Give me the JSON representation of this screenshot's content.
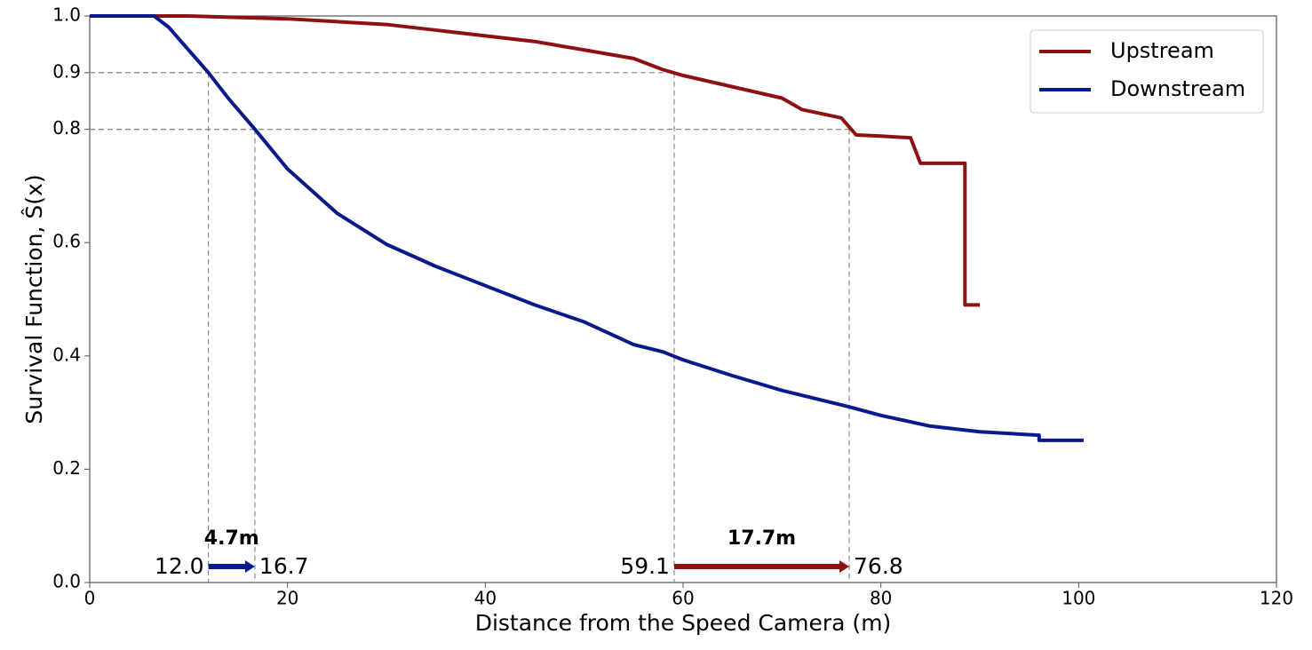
{
  "chart_data": {
    "type": "line",
    "xlabel": "Distance from the Speed Camera (m)",
    "ylabel": "Survival Function, Ŝ(x)",
    "xlim": [
      0,
      120
    ],
    "ylim": [
      0,
      1
    ],
    "xticks": [
      0,
      20,
      40,
      60,
      80,
      100,
      120
    ],
    "yticks": [
      {
        "value": 0,
        "label": "0.0"
      },
      0.2,
      0.4,
      0.6,
      0.8,
      0.9,
      {
        "value": 1,
        "label": "1.0"
      }
    ],
    "legend": "upper right",
    "series": [
      {
        "name": "Upstream",
        "color": "#8e1111",
        "x": [
          0,
          10,
          20,
          30,
          35,
          40,
          45,
          50,
          55,
          58,
          60,
          65,
          70,
          72,
          76,
          77,
          77.5,
          80,
          83,
          84,
          88.5,
          88.5,
          90
        ],
        "values": [
          1.0,
          1.0,
          0.995,
          0.985,
          0.975,
          0.965,
          0.955,
          0.94,
          0.925,
          0.905,
          0.895,
          0.875,
          0.855,
          0.835,
          0.82,
          0.8,
          0.79,
          0.788,
          0.785,
          0.74,
          0.74,
          0.49,
          0.49
        ]
      },
      {
        "name": "Downstream",
        "color": "#0b1a8a",
        "x": [
          0,
          6.5,
          8,
          10,
          12,
          14,
          16.7,
          20,
          25,
          30,
          35,
          40,
          45,
          50,
          55,
          58,
          60,
          65,
          70,
          76.8,
          80,
          85,
          90,
          96,
          96,
          100.5
        ],
        "values": [
          1.0,
          1.0,
          0.98,
          0.94,
          0.9,
          0.855,
          0.8,
          0.73,
          0.652,
          0.597,
          0.558,
          0.524,
          0.49,
          0.46,
          0.42,
          0.407,
          0.393,
          0.365,
          0.339,
          0.31,
          0.295,
          0.276,
          0.266,
          0.26,
          0.251,
          0.251
        ]
      }
    ],
    "intervals": [
      {
        "start": 12.0,
        "start_label": "12.0",
        "end": 16.7,
        "end_label": "16.7",
        "start_level": 0.9,
        "end_level": 0.8,
        "diff_label": "4.7m",
        "color": "#0b1a8a"
      },
      {
        "start": 59.1,
        "start_label": "59.1",
        "end": 76.8,
        "end_label": "76.8",
        "start_level": 0.9,
        "end_level": 0.8,
        "diff_label": "17.7m",
        "color": "#8e1111"
      }
    ]
  }
}
